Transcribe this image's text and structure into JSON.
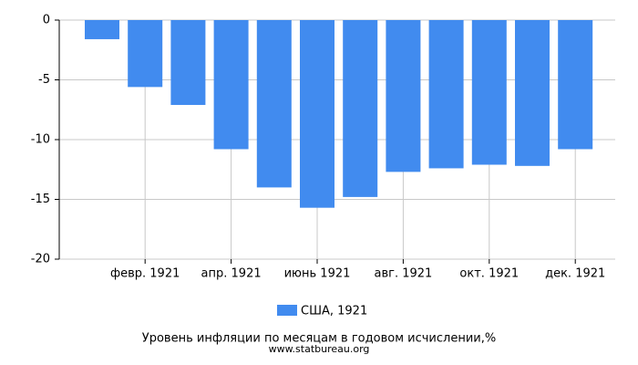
{
  "chart_data": {
    "type": "bar",
    "title": "Уровень инфляции по месяцам в годовом исчислении,%",
    "source": "www.statbureau.org",
    "categories": [
      null,
      "февр. 1921",
      null,
      "апр. 1921",
      null,
      "июнь 1921",
      null,
      "авг. 1921",
      null,
      "окт. 1921",
      null,
      "дек. 1921"
    ],
    "series": [
      {
        "name": "США, 1921",
        "color": "#418bef",
        "values": [
          -1.6,
          -5.6,
          -7.1,
          -10.8,
          -14.0,
          -15.7,
          -14.8,
          -12.7,
          -12.4,
          -12.1,
          -12.2,
          -10.8
        ]
      }
    ],
    "ylim": [
      -20,
      0
    ],
    "yticks": [
      0,
      -5,
      -10,
      -15,
      -20
    ],
    "grid": true
  }
}
